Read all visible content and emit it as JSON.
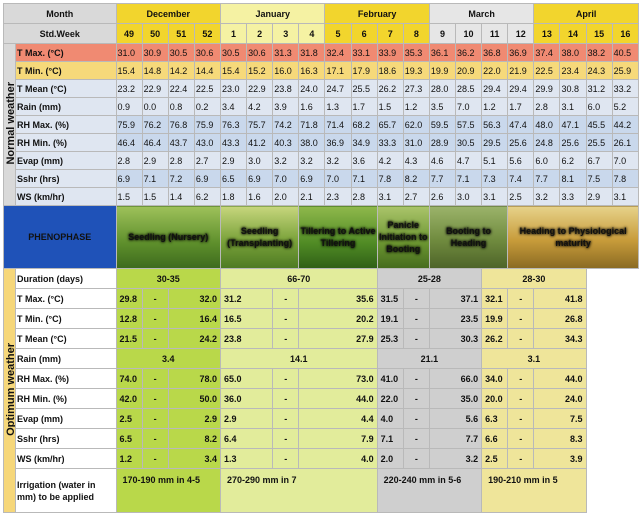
{
  "header": {
    "month_label": "Month",
    "week_label": "Std.Week",
    "months": [
      "December",
      "January",
      "February",
      "March",
      "April"
    ],
    "weeks": [
      "49",
      "50",
      "51",
      "52",
      "1",
      "2",
      "3",
      "4",
      "5",
      "6",
      "7",
      "8",
      "9",
      "10",
      "11",
      "12",
      "13",
      "14",
      "15",
      "16"
    ]
  },
  "normal": {
    "section_label": "Normal weather",
    "rows": [
      {
        "label": "T Max. (°C)",
        "values": [
          "31.0",
          "30.9",
          "30.5",
          "30.6",
          "30.5",
          "30.6",
          "31.3",
          "31.8",
          "32.4",
          "33.1",
          "33.9",
          "35.3",
          "36.1",
          "36.2",
          "36.8",
          "36.9",
          "37.4",
          "38.0",
          "38.2",
          "40.5"
        ]
      },
      {
        "label": "T Min. (°C)",
        "values": [
          "15.4",
          "14.8",
          "14.2",
          "14.4",
          "15.4",
          "15.2",
          "16.0",
          "16.3",
          "17.1",
          "17.9",
          "18.6",
          "19.3",
          "19.9",
          "20.9",
          "22.0",
          "21.9",
          "22.5",
          "23.4",
          "24.3",
          "25.9"
        ]
      },
      {
        "label": "T Mean (°C)",
        "values": [
          "23.2",
          "22.9",
          "22.4",
          "22.5",
          "23.0",
          "22.9",
          "23.8",
          "24.0",
          "24.7",
          "25.5",
          "26.2",
          "27.3",
          "28.0",
          "28.5",
          "29.4",
          "29.4",
          "29.9",
          "30.8",
          "31.2",
          "33.2"
        ]
      },
      {
        "label": "Rain (mm)",
        "values": [
          "0.9",
          "0.0",
          "0.8",
          "0.2",
          "3.4",
          "4.2",
          "3.9",
          "1.6",
          "1.3",
          "1.7",
          "1.5",
          "1.2",
          "3.5",
          "7.0",
          "1.2",
          "1.7",
          "2.8",
          "3.1",
          "6.0",
          "5.2"
        ]
      },
      {
        "label": "RH Max. (%)",
        "values": [
          "75.9",
          "76.2",
          "76.8",
          "75.9",
          "76.3",
          "75.7",
          "74.2",
          "71.8",
          "71.4",
          "68.2",
          "65.7",
          "62.0",
          "59.5",
          "57.5",
          "56.3",
          "47.4",
          "48.0",
          "47.1",
          "45.5",
          "44.2"
        ]
      },
      {
        "label": "RH Min. (%)",
        "values": [
          "46.4",
          "46.4",
          "43.7",
          "43.0",
          "43.3",
          "41.2",
          "40.3",
          "38.0",
          "36.9",
          "34.9",
          "33.3",
          "31.0",
          "28.9",
          "30.5",
          "29.5",
          "25.6",
          "24.8",
          "25.6",
          "25.5",
          "26.1"
        ]
      },
      {
        "label": "Evap (mm)",
        "values": [
          "2.8",
          "2.9",
          "2.8",
          "2.7",
          "2.9",
          "3.0",
          "3.2",
          "3.2",
          "3.2",
          "3.6",
          "4.2",
          "4.3",
          "4.6",
          "4.7",
          "5.1",
          "5.6",
          "6.0",
          "6.2",
          "6.7",
          "7.0"
        ]
      },
      {
        "label": "Sshr (hrs)",
        "values": [
          "6.9",
          "7.1",
          "7.2",
          "6.9",
          "6.5",
          "6.9",
          "7.0",
          "6.9",
          "7.0",
          "7.1",
          "7.8",
          "8.2",
          "7.7",
          "7.1",
          "7.3",
          "7.4",
          "7.7",
          "8.1",
          "7.5",
          "7.8"
        ]
      },
      {
        "label": "WS (km/hr)",
        "values": [
          "1.5",
          "1.5",
          "1.4",
          "6.2",
          "1.8",
          "1.6",
          "2.0",
          "2.1",
          "2.3",
          "2.8",
          "3.1",
          "2.7",
          "2.6",
          "3.0",
          "3.1",
          "2.5",
          "3.2",
          "3.3",
          "2.9",
          "3.1"
        ]
      }
    ]
  },
  "phenophase": {
    "label": "PHENOPHASE",
    "stages": [
      "Seedling (Nursery)",
      "Seedling (Transplanting)",
      "Tillering to Active Tillering",
      "Panicle Initiation to Booting",
      "Booting to Heading",
      "Heading to Physiological maturity"
    ]
  },
  "optimum": {
    "section_label": "Optimum weather",
    "duration_label": "Duration (days)",
    "durations": [
      "30-35",
      "66-70",
      "25-28",
      "28-30"
    ],
    "rows": [
      {
        "label": "T Max. (°C)",
        "cols": [
          [
            "29.8",
            "32.0"
          ],
          [
            "31.2",
            "35.6"
          ],
          [
            "31.5",
            "37.1"
          ],
          [
            "32.1",
            "41.8"
          ]
        ]
      },
      {
        "label": "T Min. (°C)",
        "cols": [
          [
            "12.8",
            "16.4"
          ],
          [
            "16.5",
            "20.2"
          ],
          [
            "19.1",
            "23.5"
          ],
          [
            "19.9",
            "26.8"
          ]
        ]
      },
      {
        "label": "T Mean (°C)",
        "cols": [
          [
            "21.5",
            "24.2"
          ],
          [
            "23.8",
            "27.9"
          ],
          [
            "25.3",
            "30.3"
          ],
          [
            "26.2",
            "34.3"
          ]
        ]
      },
      {
        "label": "Rain (mm)",
        "single": [
          "3.4",
          "14.1",
          "21.1",
          "3.1"
        ]
      },
      {
        "label": "RH Max. (%)",
        "cols": [
          [
            "74.0",
            "78.0"
          ],
          [
            "65.0",
            "73.0"
          ],
          [
            "41.0",
            "66.0"
          ],
          [
            "34.0",
            "44.0"
          ]
        ]
      },
      {
        "label": "RH Min. (%)",
        "cols": [
          [
            "42.0",
            "50.0"
          ],
          [
            "36.0",
            "44.0"
          ],
          [
            "22.0",
            "35.0"
          ],
          [
            "20.0",
            "24.0"
          ]
        ]
      },
      {
        "label": "Evap (mm)",
        "cols": [
          [
            "2.5",
            "2.9"
          ],
          [
            "2.9",
            "4.4"
          ],
          [
            "4.0",
            "5.6"
          ],
          [
            "6.3",
            "7.5"
          ]
        ]
      },
      {
        "label": "Sshr (hrs)",
        "cols": [
          [
            "6.5",
            "8.2"
          ],
          [
            "6.4",
            "7.9"
          ],
          [
            "7.1",
            "7.7"
          ],
          [
            "6.6",
            "8.3"
          ]
        ]
      },
      {
        "label": "WS (km/hr)",
        "cols": [
          [
            "1.2",
            "3.4"
          ],
          [
            "1.3",
            "4.0"
          ],
          [
            "2.0",
            "3.2"
          ],
          [
            "2.5",
            "3.9"
          ]
        ]
      }
    ],
    "dash": "-",
    "irrigation_label": "Irrigation (water in mm) to be applied",
    "irrigation": [
      "170-190 mm in 4-5",
      "270-290 mm in 7",
      "220-240 mm in 5-6",
      "190-210 mm in 5"
    ]
  }
}
